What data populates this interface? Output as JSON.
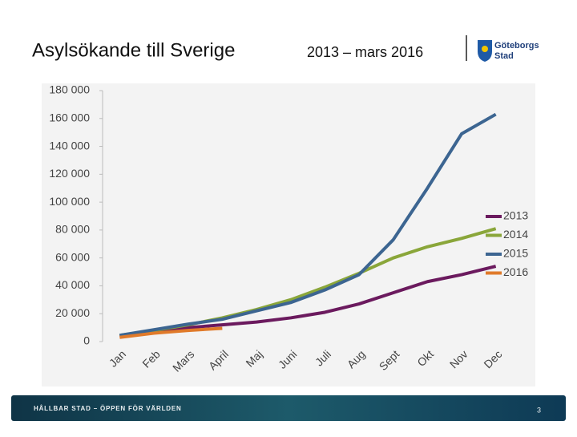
{
  "header": {
    "title": "Asylsökande till Sverige",
    "subtitle": "2013 – mars 2016",
    "logo": [
      "Göteborgs",
      "Stad"
    ]
  },
  "chart_data": {
    "type": "line",
    "categories": [
      "Jan",
      "Feb",
      "Mars",
      "April",
      "Maj",
      "Juni",
      "Juli",
      "Aug",
      "Sept",
      "Okt",
      "Nov",
      "Dec"
    ],
    "series": [
      {
        "name": "2013",
        "color": "#6b1a5e",
        "values": [
          4000,
          7000,
          10000,
          12000,
          14000,
          17000,
          21000,
          27000,
          35000,
          43000,
          48000,
          54000
        ]
      },
      {
        "name": "2014",
        "color": "#8aa63a",
        "values": [
          4500,
          8000,
          12000,
          17000,
          23000,
          30000,
          39000,
          49000,
          60000,
          68000,
          74000,
          81000
        ]
      },
      {
        "name": "2015",
        "color": "#3c6591",
        "values": [
          4500,
          8500,
          12500,
          16000,
          22000,
          28000,
          37000,
          48000,
          73000,
          110000,
          149000,
          163000
        ]
      },
      {
        "name": "2016",
        "color": "#e07a2a",
        "values": [
          3000,
          6000,
          8000,
          9500,
          null,
          null,
          null,
          null,
          null,
          null,
          null,
          null
        ]
      }
    ],
    "ylim": [
      0,
      180000
    ],
    "yticks": [
      0,
      {
        "value": 20000,
        "label": "20 000"
      },
      {
        "value": 40000,
        "label": "40 000"
      },
      {
        "value": 60000,
        "label": "60 000"
      },
      {
        "value": 80000,
        "label": "80 000"
      },
      {
        "value": 100000,
        "label": "100 000"
      },
      {
        "value": 120000,
        "label": "120 000"
      },
      {
        "value": 140000,
        "label": "140 000"
      },
      {
        "value": 160000,
        "label": "160 000"
      },
      {
        "value": 180000,
        "label": "180 000"
      }
    ],
    "legend": "right"
  },
  "footer": {
    "tagline": "HÅLLBAR STAD – ÖPPEN FÖR VÄRLDEN",
    "page": "3"
  }
}
